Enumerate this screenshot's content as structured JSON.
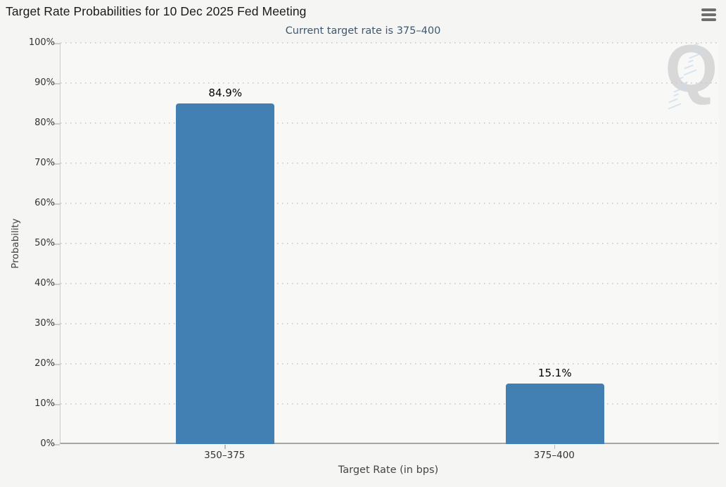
{
  "menu": {
    "icon": "hamburger-menu-icon",
    "tooltip_label": "Chart context menu"
  },
  "watermark": {
    "letter": "Q"
  },
  "chart_data": {
    "type": "bar",
    "title": "Target Rate Probabilities for 10 Dec 2025 Fed Meeting",
    "subtitle": "Current target rate is 375–400",
    "categories": [
      "350–375",
      "375–400"
    ],
    "values": [
      84.9,
      15.1
    ],
    "bar_labels": [
      "84.9%",
      "15.1%"
    ],
    "xlabel": "Target Rate (in bps)",
    "ylabel": "Probability",
    "ylim": [
      0,
      100
    ],
    "ytick_step": 10,
    "ytick_labels": [
      "0%",
      "10%",
      "20%",
      "30%",
      "40%",
      "50%",
      "60%",
      "70%",
      "80%",
      "90%",
      "100%"
    ],
    "grid": "horizontal-dotted",
    "legend_position": "none",
    "bar_color": "#4280b4",
    "subtitle_color": "#3e576f",
    "axis_text_color": "#333333"
  }
}
